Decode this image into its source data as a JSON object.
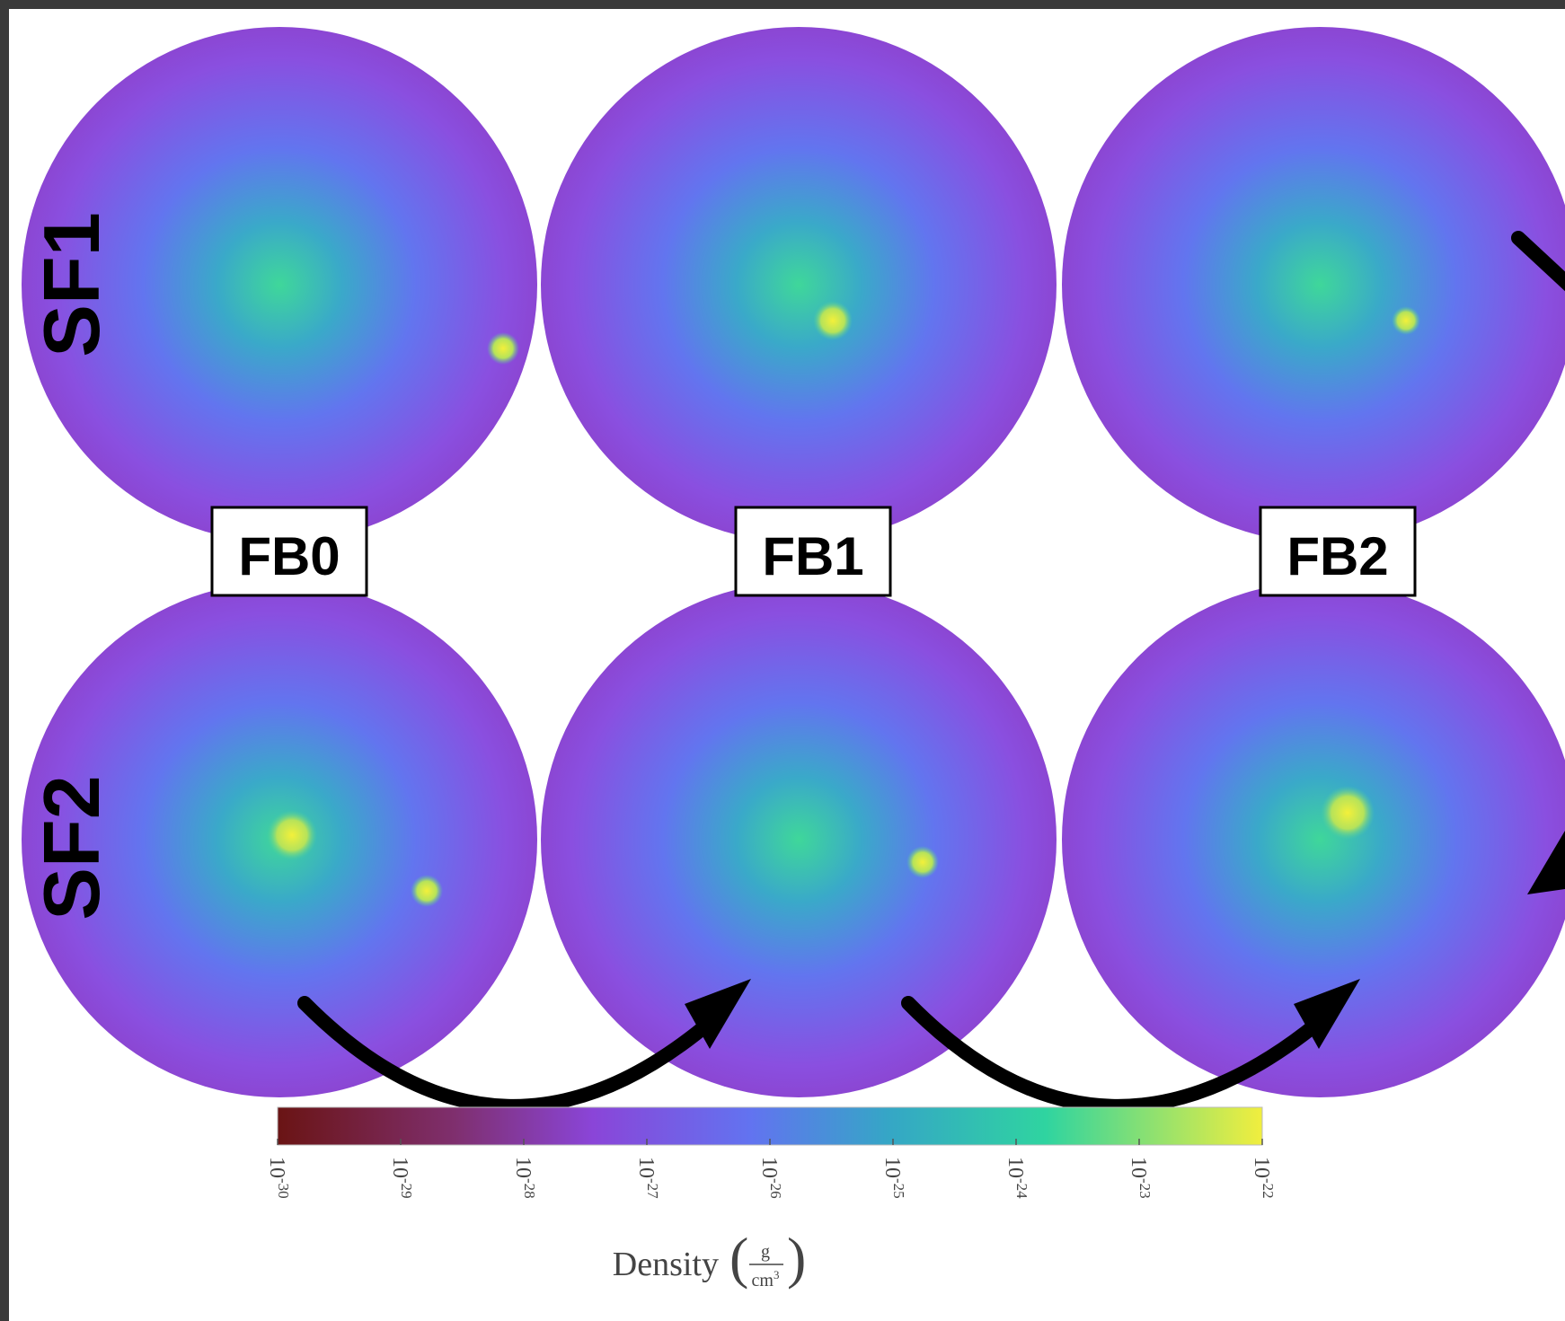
{
  "rows": [
    "SF1",
    "SF2"
  ],
  "columns": [
    "FB0",
    "FB1",
    "FB2"
  ],
  "colorbar": {
    "label": "Density",
    "unit_numerator": "g",
    "unit_denominator": "cm",
    "unit_denominator_exponent": "3",
    "ticks": [
      {
        "value": -30,
        "base": "10",
        "exponent": "-30"
      },
      {
        "value": -29,
        "base": "10",
        "exponent": "-29"
      },
      {
        "value": -28,
        "base": "10",
        "exponent": "-28"
      },
      {
        "value": -27,
        "base": "10",
        "exponent": "-27"
      },
      {
        "value": -26,
        "base": "10",
        "exponent": "-26"
      },
      {
        "value": -25,
        "base": "10",
        "exponent": "-25"
      },
      {
        "value": -24,
        "base": "10",
        "exponent": "-24"
      },
      {
        "value": -23,
        "base": "10",
        "exponent": "-23"
      },
      {
        "value": -22,
        "base": "10",
        "exponent": "-22"
      }
    ]
  }
}
